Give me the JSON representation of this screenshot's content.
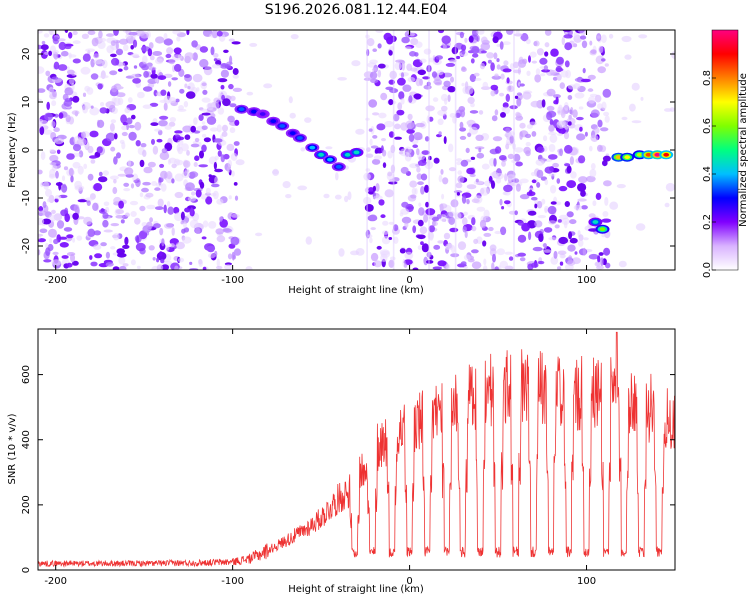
{
  "chart_data": [
    {
      "type": "heatmap",
      "title": "S196.2026.081.12.44.E04",
      "xlabel": "Height of straight line (km)",
      "ylabel": "Frequency (Hz)",
      "xlim": [
        -210,
        150
      ],
      "ylim": [
        -25,
        25
      ],
      "xticks": [
        -200,
        -100,
        0,
        100
      ],
      "yticks": [
        -20,
        -10,
        0,
        10,
        20
      ],
      "colorbar": {
        "label": "Normalized spectral amplitude",
        "range": [
          0,
          1
        ],
        "ticks": [
          "0.0",
          "0.2",
          "0.4",
          "0.6",
          "0.8"
        ],
        "colors": [
          "#ffffff",
          "#d9b3ff",
          "#8000ff",
          "#0000ff",
          "#00bfff",
          "#00ff80",
          "#80ff00",
          "#ffff00",
          "#ff8000",
          "#ff0000",
          "#ff0080"
        ]
      },
      "noise_gap_km": [
        [
          -97,
          -24
        ],
        [
          -9,
          -8
        ],
        [
          26,
          27
        ],
        [
          59,
          60
        ],
        [
          100,
          102
        ],
        [
          112,
          150
        ]
      ],
      "signal_track": [
        {
          "x": -95,
          "y": 8.5,
          "amp": 0.35
        },
        {
          "x": -88,
          "y": 8.0,
          "amp": 0.3
        },
        {
          "x": -83,
          "y": 7.5,
          "amp": 0.25
        },
        {
          "x": -77,
          "y": 6.0,
          "amp": 0.3
        },
        {
          "x": -72,
          "y": 5.0,
          "amp": 0.35
        },
        {
          "x": -66,
          "y": 3.5,
          "amp": 0.3
        },
        {
          "x": -62,
          "y": 2.5,
          "amp": 0.35
        },
        {
          "x": -55,
          "y": 0.5,
          "amp": 0.4
        },
        {
          "x": -50,
          "y": -1.0,
          "amp": 0.45
        },
        {
          "x": -45,
          "y": -2.0,
          "amp": 0.4
        },
        {
          "x": -40,
          "y": -3.5,
          "amp": 0.35
        },
        {
          "x": -35,
          "y": -1.0,
          "amp": 0.45
        },
        {
          "x": -30,
          "y": -0.5,
          "amp": 0.45
        },
        {
          "x": 105,
          "y": -15.0,
          "amp": 0.45
        },
        {
          "x": 109,
          "y": -16.5,
          "amp": 0.6
        },
        {
          "x": 118,
          "y": -1.5,
          "amp": 0.75
        },
        {
          "x": 123,
          "y": -1.5,
          "amp": 0.7
        },
        {
          "x": 130,
          "y": -1.0,
          "amp": 0.65
        },
        {
          "x": 135,
          "y": -1.0,
          "amp": 0.85
        },
        {
          "x": 140,
          "y": -1.0,
          "amp": 1.0
        },
        {
          "x": 145,
          "y": -1.0,
          "amp": 0.9
        }
      ]
    },
    {
      "type": "line",
      "xlabel": "Height of straight line (km)",
      "ylabel": "SNR (10 * v/v)",
      "xlim": [
        -210,
        150
      ],
      "ylim": [
        0,
        740
      ],
      "xticks": [
        -200,
        -100,
        0,
        100
      ],
      "yticks": [
        0,
        200,
        400,
        600
      ],
      "series": [
        {
          "name": "SNR",
          "color": "#ee3333",
          "envelope": {
            "x": [
              -210,
              -150,
              -120,
              -100,
              -90,
              -80,
              -70,
              -60,
              -50,
              -40,
              -30,
              -25,
              -20,
              -10,
              0,
              10,
              20,
              30,
              40,
              50,
              60,
              70,
              80,
              90,
              100,
              110,
              120,
              130,
              140,
              150
            ],
            "y": [
              20,
              20,
              22,
              25,
              35,
              60,
              90,
              120,
              160,
              220,
              260,
              330,
              370,
              420,
              440,
              460,
              500,
              520,
              540,
              550,
              560,
              560,
              550,
              540,
              540,
              540,
              530,
              520,
              480,
              440
            ]
          },
          "dropouts_x": [
            -31,
            -21,
            -10,
            0,
            10,
            21,
            30,
            40,
            50,
            60,
            70,
            80,
            90,
            100,
            111,
            121,
            131,
            141
          ],
          "dropout_level": 55,
          "peak": {
            "x": 117,
            "y": 730
          }
        }
      ]
    }
  ]
}
